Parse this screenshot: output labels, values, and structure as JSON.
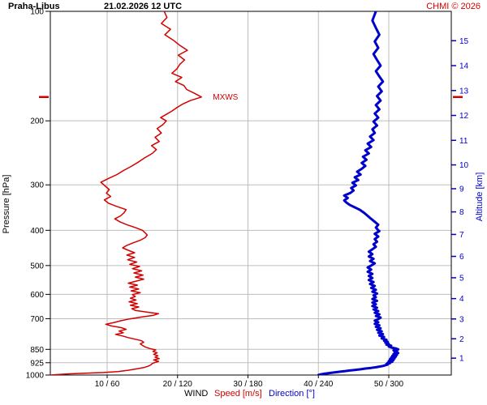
{
  "header": {
    "station": "Praha-Libus",
    "datetime": "21.02.2026 12 UTC",
    "copyright": "CHMI © 2026"
  },
  "colors": {
    "red": "#d40000",
    "blue": "#0000cc",
    "grid": "#bdbdbd",
    "axis": "#000000",
    "background": "#ffffff"
  },
  "chart_data": {
    "type": "line",
    "title": "Praha-Libus 21.02.2026 12 UTC",
    "x_axis": {
      "legend": [
        {
          "text": "WIND",
          "color": "#000000"
        },
        {
          "text": "Speed [m/s]",
          "color": "#d40000"
        },
        {
          "text": "Direction [°]",
          "color": "#0000cc"
        }
      ],
      "tick_labels": [
        "10 / 60",
        "20 / 120",
        "30 / 180",
        "40 / 240",
        "50 / 300"
      ],
      "speed_ticks": [
        10,
        20,
        30,
        40,
        50
      ],
      "deg_per_speed_unit": 6
    },
    "y_axis_left": {
      "label": "Pressure [hPa]",
      "scale": "log",
      "range": [
        100,
        1000
      ],
      "ticks": [
        100,
        200,
        300,
        400,
        500,
        600,
        700,
        850,
        925,
        1000
      ]
    },
    "y_axis_right": {
      "label": "Altitude [km]",
      "color": "#0000cc",
      "ticks": [
        1,
        2,
        3,
        4,
        5,
        6,
        7,
        8,
        9,
        10,
        11,
        12,
        13,
        14,
        15
      ],
      "mapping": "standard-atmosphere"
    },
    "annotations": [
      {
        "text": "MXWS",
        "pressure_hPa": 172,
        "speed_ms": 23.4,
        "color": "#d40000",
        "edge_markers": true
      }
    ],
    "series": [
      {
        "name": "wind-speed",
        "value_axis": "speed",
        "unit": "m/s",
        "color": "#d40000",
        "width": 1.5,
        "points": [
          [
            1000,
            2.0
          ],
          [
            996,
            3.2
          ],
          [
            992,
            5.0
          ],
          [
            988,
            7.2
          ],
          [
            984,
            9.5
          ],
          [
            978,
            11.5
          ],
          [
            970,
            13.0
          ],
          [
            962,
            14.2
          ],
          [
            954,
            15.2
          ],
          [
            946,
            15.8
          ],
          [
            938,
            16.2
          ],
          [
            930,
            16.4
          ],
          [
            925,
            16.7
          ],
          [
            917,
            17.3
          ],
          [
            909,
            16.6
          ],
          [
            901,
            17.4
          ],
          [
            893,
            16.8
          ],
          [
            885,
            17.2
          ],
          [
            877,
            16.6
          ],
          [
            869,
            17.1
          ],
          [
            861,
            16.5
          ],
          [
            853,
            16.9
          ],
          [
            845,
            16.0
          ],
          [
            837,
            15.4
          ],
          [
            829,
            15.0
          ],
          [
            821,
            14.7
          ],
          [
            813,
            15.2
          ],
          [
            805,
            14.9
          ],
          [
            797,
            14.0
          ],
          [
            789,
            13.0
          ],
          [
            781,
            12.2
          ],
          [
            773,
            11.2
          ],
          [
            765,
            12.3
          ],
          [
            757,
            11.7
          ],
          [
            749,
            12.7
          ],
          [
            741,
            12.0
          ],
          [
            733,
            10.6
          ],
          [
            725,
            9.8
          ],
          [
            717,
            11.0
          ],
          [
            709,
            12.0
          ],
          [
            701,
            13.2
          ],
          [
            693,
            14.8
          ],
          [
            685,
            16.6
          ],
          [
            678,
            17.3
          ],
          [
            671,
            15.6
          ],
          [
            664,
            14.0
          ],
          [
            657,
            13.5
          ],
          [
            650,
            14.5
          ],
          [
            643,
            13.3
          ],
          [
            636,
            14.3
          ],
          [
            629,
            13.1
          ],
          [
            622,
            14.1
          ],
          [
            615,
            13.3
          ],
          [
            608,
            14.0
          ],
          [
            601,
            13.6
          ],
          [
            594,
            14.7
          ],
          [
            587,
            13.4
          ],
          [
            580,
            14.5
          ],
          [
            573,
            13.2
          ],
          [
            566,
            14.3
          ],
          [
            559,
            13.0
          ],
          [
            552,
            14.1
          ],
          [
            545,
            15.2
          ],
          [
            538,
            14.0
          ],
          [
            531,
            15.1
          ],
          [
            524,
            13.8
          ],
          [
            517,
            14.9
          ],
          [
            510,
            13.6
          ],
          [
            503,
            14.6
          ],
          [
            496,
            13.2
          ],
          [
            489,
            14.2
          ],
          [
            482,
            12.9
          ],
          [
            475,
            13.9
          ],
          [
            468,
            12.8
          ],
          [
            461,
            13.9
          ],
          [
            454,
            13.0
          ],
          [
            447,
            12.2
          ],
          [
            440,
            12.8
          ],
          [
            433,
            13.7
          ],
          [
            426,
            14.7
          ],
          [
            419,
            15.4
          ],
          [
            412,
            15.7
          ],
          [
            405,
            15.3
          ],
          [
            400,
            15.0
          ],
          [
            393,
            14.0
          ],
          [
            386,
            12.8
          ],
          [
            379,
            11.8
          ],
          [
            372,
            11.1
          ],
          [
            365,
            11.9
          ],
          [
            358,
            12.4
          ],
          [
            351,
            12.7
          ],
          [
            344,
            11.4
          ],
          [
            337,
            10.2
          ],
          [
            330,
            9.6
          ],
          [
            323,
            10.5
          ],
          [
            316,
            9.9
          ],
          [
            309,
            10.3
          ],
          [
            302,
            9.7
          ],
          [
            295,
            9.1
          ],
          [
            288,
            10.2
          ],
          [
            281,
            11.4
          ],
          [
            274,
            12.3
          ],
          [
            267,
            13.4
          ],
          [
            260,
            14.4
          ],
          [
            253,
            15.3
          ],
          [
            246,
            16.4
          ],
          [
            240,
            17.0
          ],
          [
            234,
            16.3
          ],
          [
            228,
            17.4
          ],
          [
            222,
            16.8
          ],
          [
            216,
            17.7
          ],
          [
            210,
            17.1
          ],
          [
            205,
            17.9
          ],
          [
            200,
            18.4
          ],
          [
            196,
            17.6
          ],
          [
            192,
            18.4
          ],
          [
            188,
            19.2
          ],
          [
            184,
            19.9
          ],
          [
            180,
            20.7
          ],
          [
            176,
            21.8
          ],
          [
            172,
            23.4
          ],
          [
            168,
            22.4
          ],
          [
            164,
            21.3
          ],
          [
            160,
            20.9
          ],
          [
            156,
            19.7
          ],
          [
            152,
            20.6
          ],
          [
            148,
            19.2
          ],
          [
            144,
            19.9
          ],
          [
            140,
            20.3
          ],
          [
            136,
            21.0
          ],
          [
            132,
            20.1
          ],
          [
            128,
            21.4
          ],
          [
            124,
            20.3
          ],
          [
            120,
            19.4
          ],
          [
            116,
            18.2
          ],
          [
            112,
            19.0
          ],
          [
            108,
            17.7
          ],
          [
            104,
            18.5
          ],
          [
            100,
            18.1
          ]
        ]
      },
      {
        "name": "wind-direction",
        "value_axis": "direction",
        "unit": "°",
        "color": "#0000cc",
        "width": 3,
        "points": [
          [
            1000,
            240
          ],
          [
            996,
            242
          ],
          [
            992,
            245
          ],
          [
            988,
            249
          ],
          [
            984,
            253
          ],
          [
            980,
            257
          ],
          [
            976,
            262
          ],
          [
            972,
            266
          ],
          [
            968,
            271
          ],
          [
            964,
            276
          ],
          [
            960,
            280
          ],
          [
            956,
            285
          ],
          [
            952,
            289
          ],
          [
            948,
            292
          ],
          [
            944,
            295
          ],
          [
            940,
            297
          ],
          [
            936,
            299
          ],
          [
            932,
            298
          ],
          [
            928,
            301
          ],
          [
            925,
            299
          ],
          [
            920,
            303
          ],
          [
            915,
            300
          ],
          [
            910,
            304
          ],
          [
            905,
            301
          ],
          [
            900,
            305
          ],
          [
            895,
            302
          ],
          [
            890,
            306
          ],
          [
            885,
            303
          ],
          [
            880,
            307
          ],
          [
            875,
            304
          ],
          [
            870,
            308
          ],
          [
            865,
            305
          ],
          [
            860,
            307
          ],
          [
            855,
            304
          ],
          [
            850,
            308
          ],
          [
            845,
            306
          ],
          [
            840,
            302
          ],
          [
            835,
            300
          ],
          [
            830,
            302
          ],
          [
            825,
            298
          ],
          [
            820,
            300
          ],
          [
            815,
            297
          ],
          [
            810,
            299
          ],
          [
            805,
            296
          ],
          [
            800,
            298
          ],
          [
            793,
            294
          ],
          [
            786,
            296
          ],
          [
            779,
            292
          ],
          [
            772,
            295
          ],
          [
            765,
            291
          ],
          [
            758,
            294
          ],
          [
            751,
            290
          ],
          [
            744,
            293
          ],
          [
            737,
            289
          ],
          [
            730,
            292
          ],
          [
            723,
            288
          ],
          [
            716,
            291
          ],
          [
            709,
            288
          ],
          [
            702,
            291
          ],
          [
            695,
            293
          ],
          [
            688,
            289
          ],
          [
            681,
            292
          ],
          [
            674,
            288
          ],
          [
            667,
            291
          ],
          [
            660,
            287
          ],
          [
            653,
            290
          ],
          [
            646,
            286
          ],
          [
            639,
            289
          ],
          [
            632,
            286
          ],
          [
            625,
            290
          ],
          [
            618,
            286
          ],
          [
            611,
            289
          ],
          [
            604,
            287
          ],
          [
            597,
            290
          ],
          [
            590,
            286
          ],
          [
            583,
            289
          ],
          [
            576,
            285
          ],
          [
            569,
            288
          ],
          [
            562,
            284
          ],
          [
            555,
            287
          ],
          [
            548,
            283
          ],
          [
            541,
            286
          ],
          [
            534,
            283
          ],
          [
            527,
            286
          ],
          [
            520,
            282
          ],
          [
            513,
            285
          ],
          [
            506,
            282
          ],
          [
            500,
            285
          ],
          [
            493,
            288
          ],
          [
            486,
            284
          ],
          [
            479,
            287
          ],
          [
            472,
            283
          ],
          [
            465,
            286
          ],
          [
            458,
            283
          ],
          [
            451,
            286
          ],
          [
            444,
            289
          ],
          [
            437,
            287
          ],
          [
            430,
            290
          ],
          [
            423,
            288
          ],
          [
            416,
            291
          ],
          [
            409,
            288
          ],
          [
            402,
            292
          ],
          [
            400,
            291
          ],
          [
            393,
            289
          ],
          [
            386,
            291
          ],
          [
            379,
            288
          ],
          [
            372,
            285
          ],
          [
            365,
            282
          ],
          [
            358,
            279
          ],
          [
            351,
            275
          ],
          [
            346,
            271
          ],
          [
            341,
            267
          ],
          [
            336,
            264
          ],
          [
            331,
            262
          ],
          [
            326,
            265
          ],
          [
            321,
            262
          ],
          [
            316,
            267
          ],
          [
            311,
            270
          ],
          [
            306,
            268
          ],
          [
            301,
            272
          ],
          [
            296,
            269
          ],
          [
            291,
            274
          ],
          [
            286,
            271
          ],
          [
            281,
            276
          ],
          [
            276,
            273
          ],
          [
            271,
            277
          ],
          [
            266,
            280
          ],
          [
            261,
            277
          ],
          [
            256,
            281
          ],
          [
            251,
            278
          ],
          [
            246,
            283
          ],
          [
            241,
            280
          ],
          [
            236,
            285
          ],
          [
            231,
            282
          ],
          [
            226,
            287
          ],
          [
            221,
            284
          ],
          [
            216,
            288
          ],
          [
            211,
            286
          ],
          [
            206,
            290
          ],
          [
            201,
            287
          ],
          [
            196,
            291
          ],
          [
            191,
            288
          ],
          [
            186,
            292
          ],
          [
            181,
            289
          ],
          [
            176,
            293
          ],
          [
            171,
            290
          ],
          [
            166,
            294
          ],
          [
            161,
            291
          ],
          [
            156,
            295
          ],
          [
            151,
            292
          ],
          [
            146,
            289
          ],
          [
            141,
            293
          ],
          [
            136,
            290
          ],
          [
            131,
            287
          ],
          [
            126,
            291
          ],
          [
            121,
            288
          ],
          [
            116,
            292
          ],
          [
            111,
            289
          ],
          [
            106,
            286
          ],
          [
            100,
            289
          ]
        ]
      }
    ]
  }
}
